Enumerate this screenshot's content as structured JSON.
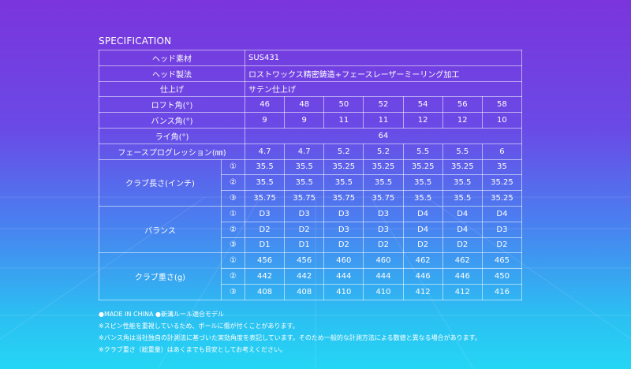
{
  "title": "SPECIFICATION",
  "table": {
    "single_rows": [
      {
        "label": "ヘッド素材",
        "value": "SUS431"
      },
      {
        "label": "ヘッド製法",
        "value": "ロストワックス精密鋳造+フェースレーザーミーリング加工"
      },
      {
        "label": "仕上げ",
        "value": "サテン仕上げ"
      }
    ],
    "rows": [
      {
        "label": "ロフト角(°)",
        "values": [
          46,
          48,
          50,
          52,
          54,
          56,
          58
        ]
      },
      {
        "label": "バンス角(°)",
        "values": [
          9,
          9,
          11,
          11,
          12,
          12,
          10
        ]
      },
      {
        "label": "ライ角(°)",
        "value": 64
      },
      {
        "label": "フェースプログレッション(㎜)",
        "values": [
          4.7,
          4.7,
          5.2,
          5.2,
          5.5,
          5.5,
          6
        ]
      }
    ],
    "groups": [
      {
        "label": "クラブ長さ(インチ)",
        "subrows": [
          {
            "mark": "①",
            "values": [
              35.5,
              35.5,
              35.25,
              35.25,
              35.25,
              35.25,
              35
            ]
          },
          {
            "mark": "②",
            "values": [
              35.5,
              35.5,
              35.5,
              35.5,
              35.5,
              35.5,
              35.25
            ]
          },
          {
            "mark": "③",
            "values": [
              35.75,
              35.75,
              35.75,
              35.75,
              35.5,
              35.5,
              35.25
            ]
          }
        ]
      },
      {
        "label": "バランス",
        "subrows": [
          {
            "mark": "①",
            "values": [
              "D3",
              "D3",
              "D3",
              "D3",
              "D4",
              "D4",
              "D4"
            ]
          },
          {
            "mark": "②",
            "values": [
              "D2",
              "D2",
              "D3",
              "D3",
              "D4",
              "D4",
              "D3"
            ]
          },
          {
            "mark": "③",
            "values": [
              "D1",
              "D1",
              "D2",
              "D2",
              "D2",
              "D2",
              "D2"
            ]
          }
        ]
      },
      {
        "label": "クラブ重さ(g)",
        "subrows": [
          {
            "mark": "①",
            "values": [
              456,
              456,
              460,
              460,
              462,
              462,
              465
            ]
          },
          {
            "mark": "②",
            "values": [
              442,
              442,
              444,
              444,
              446,
              446,
              450
            ]
          },
          {
            "mark": "③",
            "values": [
              408,
              408,
              410,
              410,
              412,
              412,
              416
            ]
          }
        ]
      }
    ]
  },
  "notes": [
    "●MADE IN CHINA ●新溝ルール適合モデル",
    "※スピン性能を重視しているため、ボールに傷が付くことがあります。",
    "※バンス角は当社独自の計測法に基づいた実効角度を表記しています。そのため一般的な計測方法による数値と異なる場合があります。",
    "※クラブ重さ（総重量）はあくまでも目安としてお考えください。"
  ]
}
